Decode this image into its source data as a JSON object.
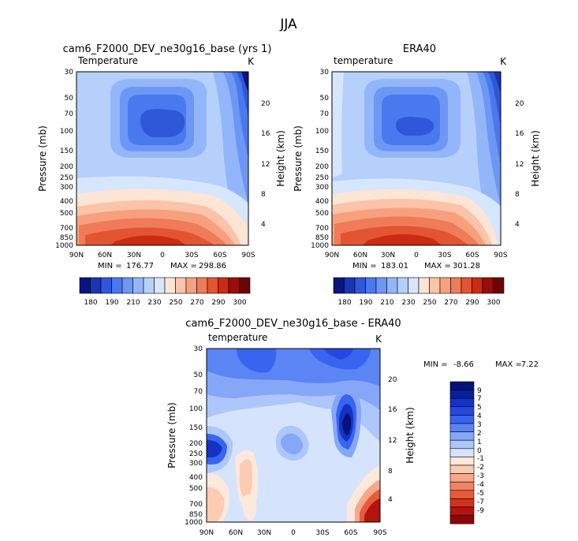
{
  "page_title": "JJA",
  "panel_colors": {
    "seq12": [
      "#0a1580",
      "#1a34b8",
      "#2f58d8",
      "#4a78ee",
      "#6d97f5",
      "#93b6fa",
      "#b6d0fc",
      "#d6e6fd",
      "#fde5d6",
      "#fbc4a8",
      "#f8a07e",
      "#f07b59",
      "#e35433",
      "#cc2b12",
      "#9c0d08",
      "#6b0606"
    ],
    "diff": [
      "#05127a",
      "#0a1f9e",
      "#1432c4",
      "#2349e0",
      "#3964f0",
      "#5b84f5",
      "#86a7f8",
      "#adc6fb",
      "#d6e3fd",
      "#fde8dc",
      "#fbcbb2",
      "#f7a889",
      "#f18363",
      "#e65b3c",
      "#d3321a",
      "#b3140c",
      "#8c0606"
    ]
  },
  "chart_data": [
    {
      "id": "model",
      "type": "contour",
      "title": "cam6_F2000_DEV_ne30g16_base (yrs 1)",
      "left_label": "Temperature",
      "units_label": "K",
      "xlabel": "",
      "ylabel": "Pressure (mb)",
      "ylabel_right": "Height (km)",
      "x_ticks": [
        "90N",
        "60N",
        "30N",
        "0",
        "30S",
        "60S",
        "90S"
      ],
      "y_ticks": [
        "30",
        "50",
        "70",
        "100",
        "150",
        "200",
        "250",
        "300",
        "400",
        "500",
        "700",
        "850",
        "1000"
      ],
      "height_ticks": [
        "20",
        "16",
        "12",
        "8",
        "4"
      ],
      "min_label": "MIN =",
      "min_value": "176.77",
      "max_label": "MAX =",
      "max_value": "298.86",
      "levels": [
        "180",
        "190",
        "210",
        "230",
        "250",
        "270",
        "290",
        "300"
      ]
    },
    {
      "id": "era",
      "type": "contour",
      "title": "ERA40",
      "left_label": "temperature",
      "units_label": "K",
      "xlabel": "",
      "ylabel": "Pressure (mb)",
      "ylabel_right": "Height (km)",
      "x_ticks": [
        "90N",
        "60N",
        "30N",
        "0",
        "30S",
        "60S",
        "90S"
      ],
      "y_ticks": [
        "30",
        "50",
        "70",
        "100",
        "150",
        "200",
        "250",
        "300",
        "400",
        "500",
        "700",
        "850",
        "1000"
      ],
      "height_ticks": [
        "20",
        "16",
        "12",
        "8",
        "4"
      ],
      "min_label": "MIN =",
      "min_value": "183.01",
      "max_label": "MAX =",
      "max_value": "301.28",
      "levels": [
        "180",
        "190",
        "210",
        "230",
        "250",
        "270",
        "290",
        "300"
      ]
    },
    {
      "id": "diff",
      "type": "contour",
      "title": "cam6_F2000_DEV_ne30g16_base - ERA40",
      "left_label": "temperature",
      "units_label": "K",
      "xlabel": "",
      "ylabel": "Pressure (mb)",
      "ylabel_right": "Height (km)",
      "x_ticks": [
        "90N",
        "60N",
        "30N",
        "0",
        "30S",
        "60S",
        "90S"
      ],
      "y_ticks": [
        "30",
        "50",
        "70",
        "100",
        "150",
        "200",
        "250",
        "300",
        "400",
        "500",
        "700",
        "850",
        "1000"
      ],
      "height_ticks": [
        "20",
        "16",
        "12",
        "8",
        "4"
      ],
      "min_label": "MIN =",
      "min_value": "-8.66",
      "max_label": "MAX =",
      "max_value": "7.22",
      "levels": [
        "9",
        "7",
        "5",
        "4",
        "3",
        "2",
        "1",
        "0",
        "-1",
        "-2",
        "-3",
        "-4",
        "-5",
        "-7",
        "-9"
      ]
    }
  ]
}
